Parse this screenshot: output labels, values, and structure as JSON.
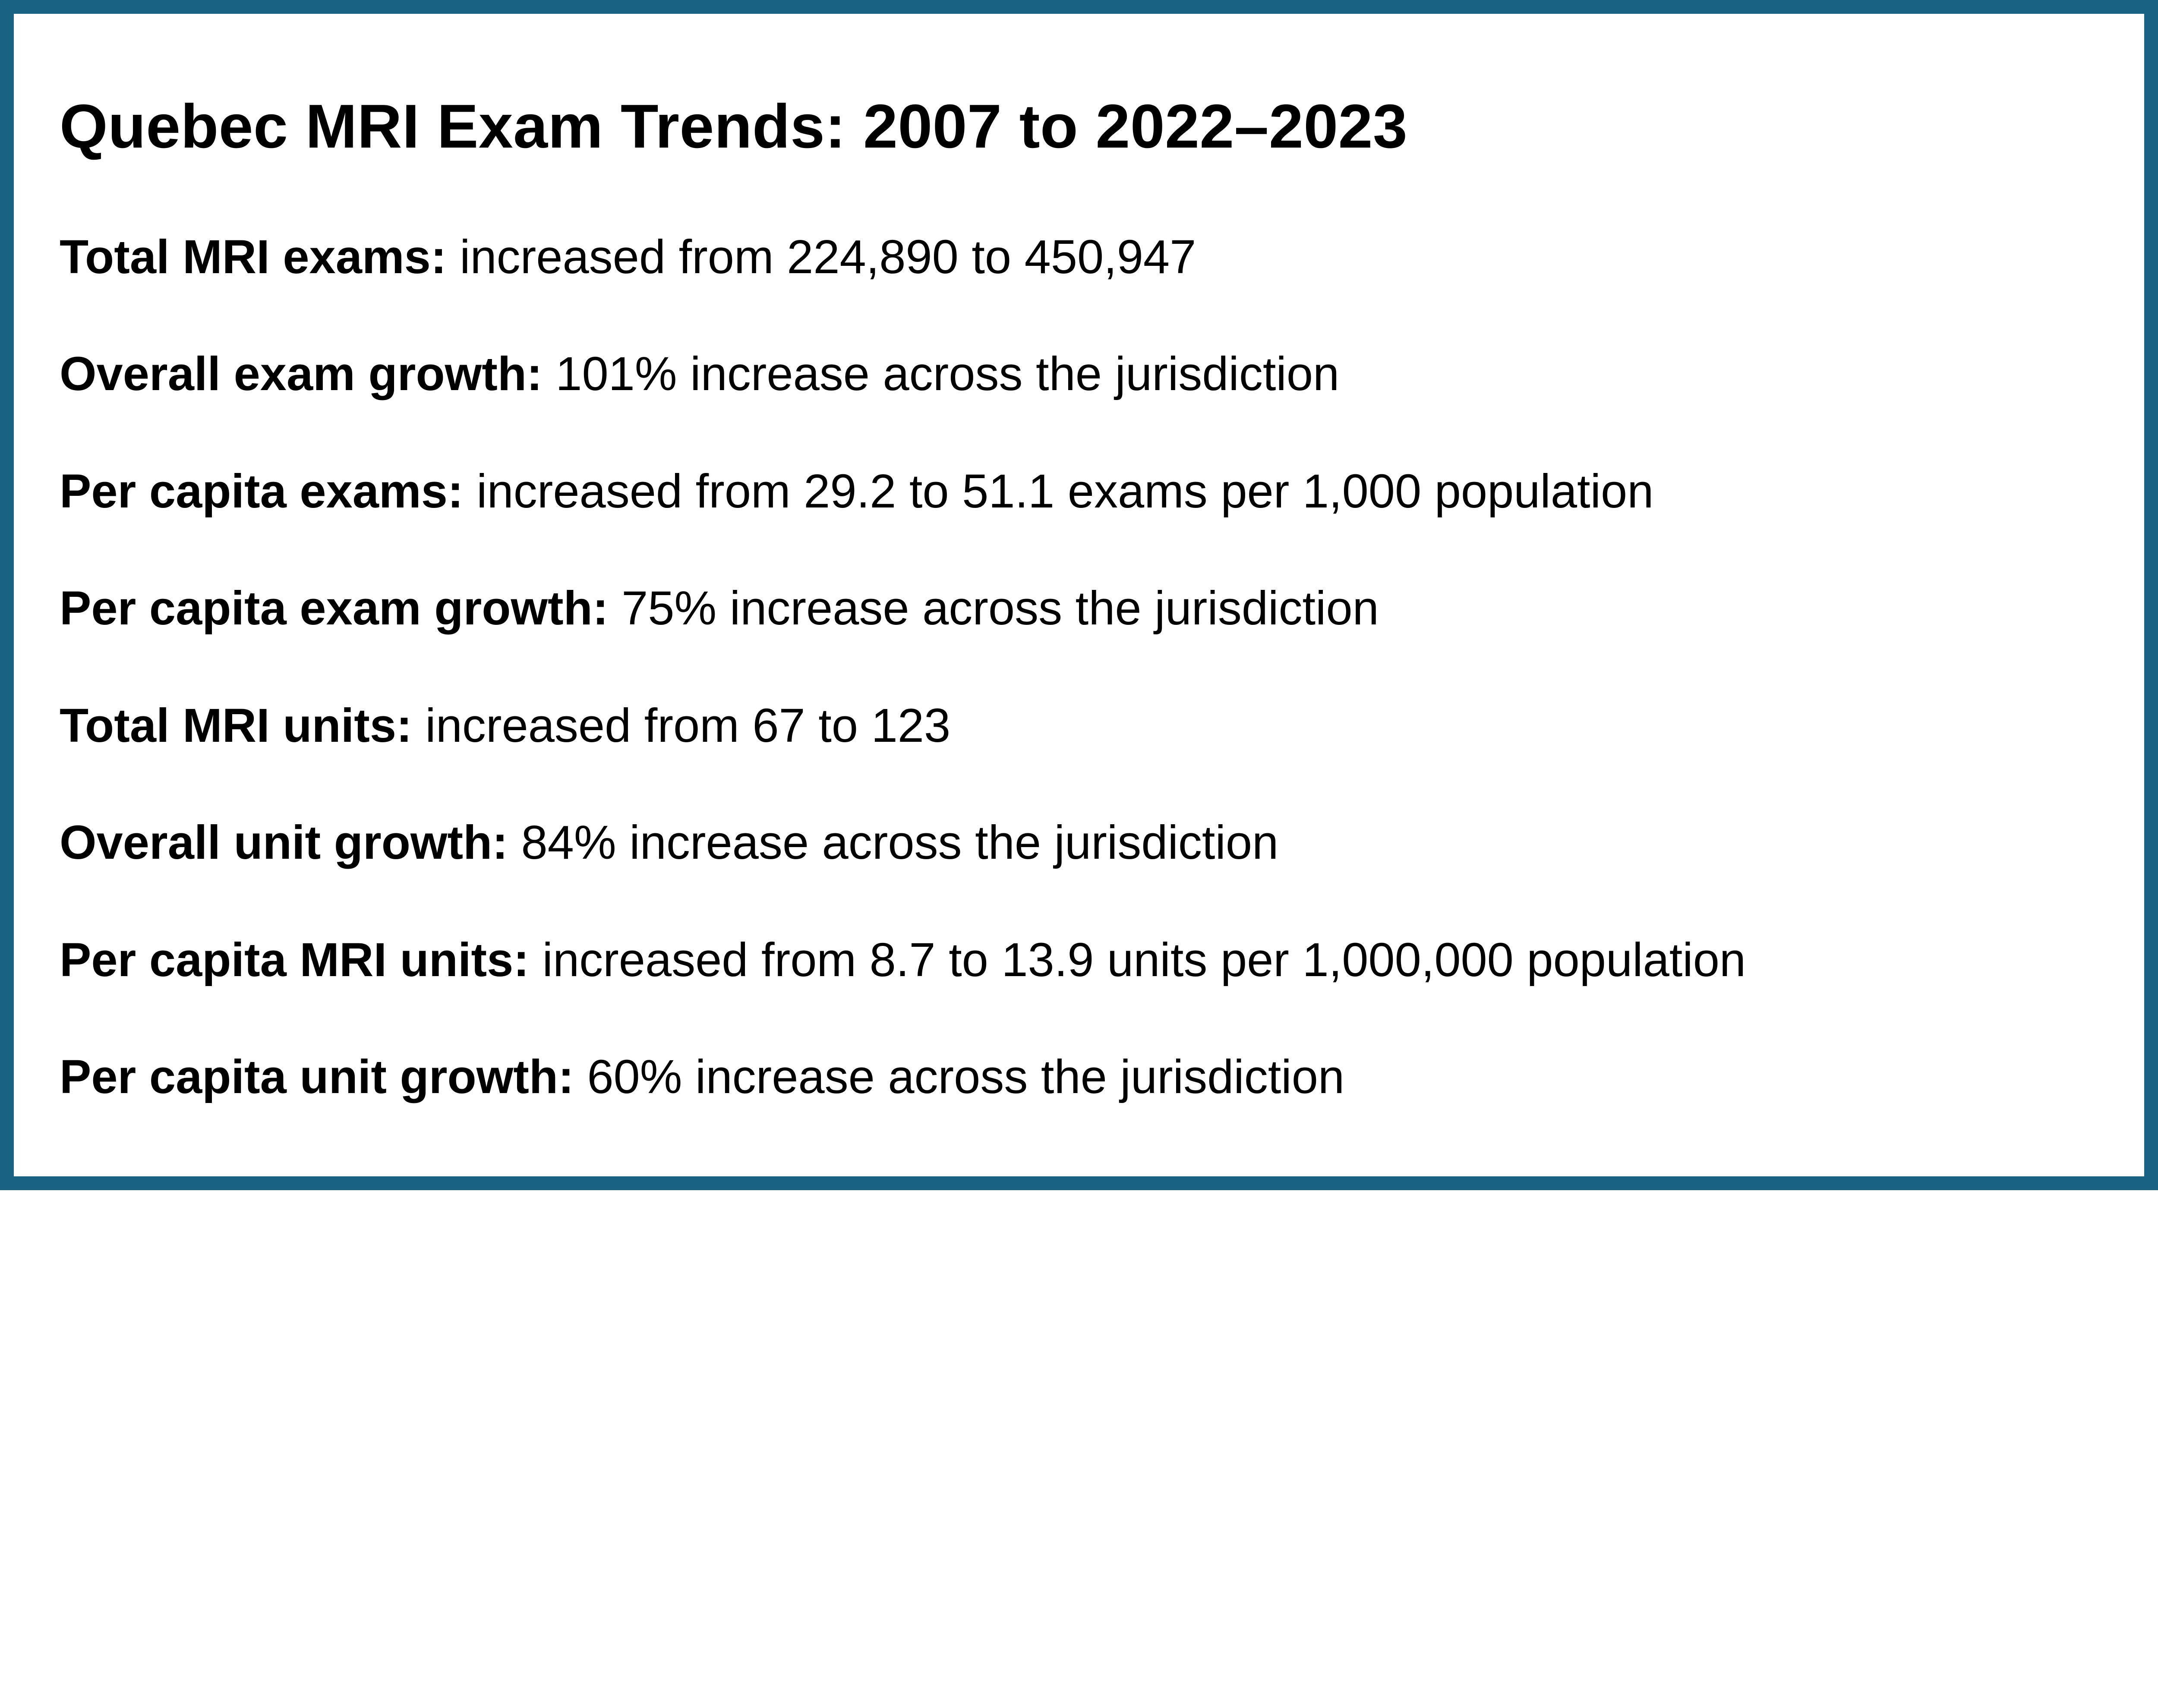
{
  "card": {
    "colors": {
      "border": "#1a6284",
      "background": "#ffffff",
      "text": "#000000"
    },
    "title": "Quebec MRI Exam Trends: 2007 to 2022–2023",
    "stats": [
      {
        "label": "Total MRI exams:",
        "value": "increased from 224,890 to 450,947"
      },
      {
        "label": "Overall exam growth:",
        "value": "101% increase across the jurisdiction"
      },
      {
        "label": "Per capita exams:",
        "value": "increased from 29.2 to 51.1 exams per 1,000 population"
      },
      {
        "label": "Per capita exam growth:",
        "value": "75% increase across the jurisdiction"
      },
      {
        "label": "Total MRI units:",
        "value": "increased from 67 to 123"
      },
      {
        "label": "Overall unit growth:",
        "value": "84% increase across the jurisdiction"
      },
      {
        "label": "Per capita MRI units:",
        "value": "increased from 8.7 to 13.9 units per 1,000,000 population"
      },
      {
        "label": "Per capita unit growth:",
        "value": "60% increase across the jurisdiction"
      }
    ]
  }
}
